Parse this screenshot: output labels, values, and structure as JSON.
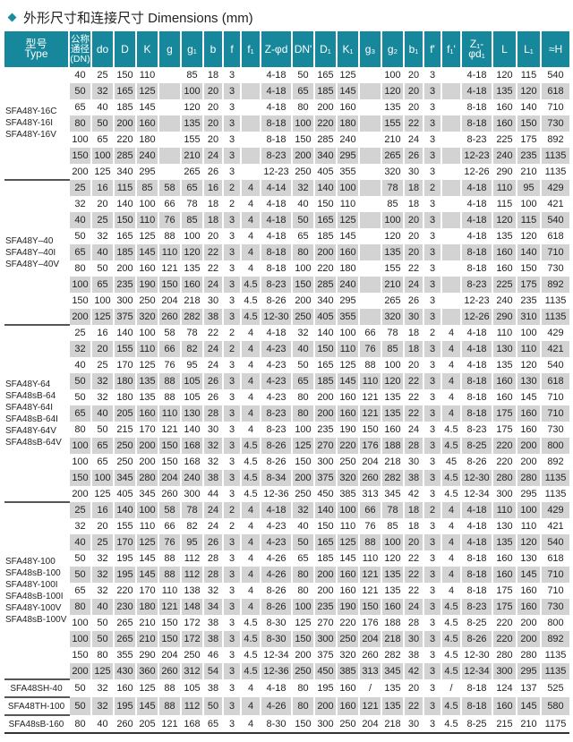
{
  "title": "外形尺寸和连接尺寸 Dimensions (mm)",
  "accent_color": "#17879c",
  "row_gray_color": "#d3d3d3",
  "headers": [
    "型号\nType",
    "公称\n通径\n(DN)",
    "do",
    "D",
    "K",
    "g",
    "g₁",
    "b",
    "f",
    "f₁",
    "Z-φd",
    "DN'",
    "D₁",
    "K₁",
    "g₃",
    "g₂",
    "b₁",
    "f'",
    "f₁'",
    "Z₁-φd₁",
    "L",
    "L₁",
    "≈H"
  ],
  "groups": [
    {
      "types": [
        "SFA48Y-16C",
        "SFA48Y-16I",
        "SFA48Y-16V"
      ],
      "rows": [
        [
          "40",
          "25",
          "150",
          "110",
          "",
          "85",
          "18",
          "3",
          "",
          "4-18",
          "50",
          "165",
          "125",
          "",
          "100",
          "20",
          "3",
          "",
          "4-18",
          "120",
          "115",
          "540"
        ],
        [
          "50",
          "32",
          "165",
          "125",
          "",
          "100",
          "20",
          "3",
          "",
          "4-18",
          "65",
          "185",
          "145",
          "",
          "120",
          "20",
          "3",
          "",
          "4-18",
          "135",
          "120",
          "618"
        ],
        [
          "65",
          "40",
          "185",
          "145",
          "",
          "120",
          "20",
          "3",
          "",
          "4-18",
          "80",
          "200",
          "160",
          "",
          "135",
          "20",
          "3",
          "",
          "8-18",
          "160",
          "140",
          "710"
        ],
        [
          "80",
          "50",
          "200",
          "160",
          "",
          "135",
          "20",
          "3",
          "",
          "8-18",
          "100",
          "220",
          "180",
          "",
          "155",
          "22",
          "3",
          "",
          "8-18",
          "160",
          "150",
          "730"
        ],
        [
          "100",
          "65",
          "220",
          "180",
          "",
          "155",
          "20",
          "3",
          "",
          "8-18",
          "150",
          "285",
          "240",
          "",
          "210",
          "24",
          "3",
          "",
          "8-23",
          "225",
          "175",
          "892"
        ],
        [
          "150",
          "100",
          "285",
          "240",
          "",
          "210",
          "24",
          "3",
          "",
          "8-23",
          "200",
          "340",
          "295",
          "",
          "265",
          "26",
          "3",
          "",
          "12-23",
          "240",
          "235",
          "1135"
        ],
        [
          "200",
          "125",
          "340",
          "295",
          "",
          "265",
          "26",
          "3",
          "",
          "12-23",
          "250",
          "405",
          "355",
          "",
          "320",
          "30",
          "3",
          "",
          "12-26",
          "290",
          "210",
          "1135"
        ]
      ]
    },
    {
      "types": [
        "SFA48Y–40",
        "SFA48Y–40I",
        "SFA48Y–40V"
      ],
      "rows": [
        [
          "25",
          "16",
          "115",
          "85",
          "58",
          "65",
          "16",
          "2",
          "4",
          "4-14",
          "32",
          "140",
          "100",
          "",
          "78",
          "18",
          "2",
          "",
          "4-18",
          "110",
          "95",
          "429"
        ],
        [
          "32",
          "20",
          "140",
          "100",
          "66",
          "78",
          "18",
          "2",
          "4",
          "4-18",
          "40",
          "150",
          "110",
          "",
          "85",
          "18",
          "3",
          "",
          "4-18",
          "115",
          "100",
          "421"
        ],
        [
          "40",
          "25",
          "150",
          "110",
          "76",
          "85",
          "18",
          "3",
          "4",
          "4-18",
          "50",
          "165",
          "125",
          "",
          "100",
          "20",
          "3",
          "",
          "4-18",
          "120",
          "115",
          "540"
        ],
        [
          "50",
          "32",
          "165",
          "125",
          "88",
          "100",
          "20",
          "3",
          "4",
          "4-18",
          "65",
          "185",
          "145",
          "",
          "120",
          "20",
          "3",
          "",
          "4-18",
          "135",
          "120",
          "618"
        ],
        [
          "65",
          "40",
          "185",
          "145",
          "110",
          "120",
          "22",
          "3",
          "4",
          "8-18",
          "80",
          "200",
          "160",
          "",
          "135",
          "20",
          "3",
          "",
          "8-18",
          "160",
          "140",
          "710"
        ],
        [
          "80",
          "50",
          "200",
          "160",
          "121",
          "135",
          "22",
          "3",
          "4",
          "8-18",
          "100",
          "220",
          "180",
          "",
          "155",
          "22",
          "3",
          "",
          "8-18",
          "160",
          "150",
          "730"
        ],
        [
          "100",
          "65",
          "235",
          "190",
          "150",
          "160",
          "24",
          "3",
          "4.5",
          "8-23",
          "150",
          "285",
          "240",
          "",
          "210",
          "24",
          "3",
          "",
          "8-23",
          "225",
          "175",
          "892"
        ],
        [
          "150",
          "100",
          "300",
          "250",
          "204",
          "218",
          "30",
          "3",
          "4.5",
          "8-26",
          "200",
          "340",
          "295",
          "",
          "265",
          "26",
          "3",
          "",
          "12-23",
          "240",
          "235",
          "1135"
        ],
        [
          "200",
          "125",
          "375",
          "320",
          "260",
          "282",
          "38",
          "3",
          "4.5",
          "12-30",
          "250",
          "405",
          "355",
          "",
          "320",
          "30",
          "3",
          "",
          "12-26",
          "290",
          "310",
          "1135"
        ]
      ]
    },
    {
      "types": [
        "SFA48Y-64",
        "SFA48sB-64",
        "SFA48Y-64I",
        "SFA48sB-64I",
        "SFA48Y-64V",
        "SFA48sB-64V"
      ],
      "rows": [
        [
          "25",
          "16",
          "140",
          "100",
          "58",
          "78",
          "22",
          "2",
          "4",
          "4-18",
          "32",
          "140",
          "100",
          "66",
          "78",
          "18",
          "2",
          "4",
          "4-18",
          "110",
          "100",
          "429"
        ],
        [
          "32",
          "20",
          "155",
          "110",
          "66",
          "82",
          "24",
          "2",
          "4",
          "4-23",
          "40",
          "150",
          "110",
          "76",
          "85",
          "18",
          "3",
          "4",
          "4-18",
          "130",
          "110",
          "421"
        ],
        [
          "40",
          "25",
          "170",
          "125",
          "76",
          "95",
          "24",
          "3",
          "4",
          "4-23",
          "50",
          "165",
          "125",
          "88",
          "100",
          "20",
          "3",
          "4",
          "4-18",
          "135",
          "120",
          "540"
        ],
        [
          "50",
          "32",
          "180",
          "135",
          "88",
          "105",
          "26",
          "3",
          "4",
          "4-23",
          "65",
          "185",
          "145",
          "110",
          "120",
          "22",
          "3",
          "4",
          "8-18",
          "160",
          "130",
          "618"
        ],
        [
          "50",
          "32",
          "180",
          "135",
          "88",
          "105",
          "26",
          "3",
          "4",
          "4-23",
          "80",
          "200",
          "160",
          "121",
          "135",
          "22",
          "3",
          "4",
          "8-18",
          "160",
          "145",
          "710"
        ],
        [
          "65",
          "40",
          "205",
          "160",
          "110",
          "130",
          "28",
          "3",
          "4",
          "8-23",
          "80",
          "200",
          "160",
          "121",
          "135",
          "22",
          "3",
          "4",
          "8-18",
          "175",
          "160",
          "710"
        ],
        [
          "80",
          "50",
          "215",
          "170",
          "121",
          "140",
          "30",
          "3",
          "4",
          "8-23",
          "100",
          "235",
          "190",
          "150",
          "160",
          "24",
          "3",
          "4.5",
          "8-23",
          "175",
          "160",
          "730"
        ],
        [
          "100",
          "65",
          "250",
          "200",
          "150",
          "168",
          "32",
          "3",
          "4.5",
          "8-26",
          "125",
          "270",
          "220",
          "176",
          "188",
          "28",
          "3",
          "4.5",
          "8-25",
          "220",
          "200",
          "800"
        ],
        [
          "100",
          "65",
          "250",
          "200",
          "150",
          "168",
          "32",
          "3",
          "4.5",
          "8-26",
          "150",
          "300",
          "250",
          "204",
          "218",
          "30",
          "3",
          "45",
          "8-26",
          "220",
          "200",
          "892"
        ],
        [
          "150",
          "100",
          "345",
          "280",
          "204",
          "240",
          "38",
          "3",
          "4.5",
          "8-34",
          "200",
          "375",
          "320",
          "260",
          "282",
          "38",
          "3",
          "4.5",
          "12-30",
          "280",
          "280",
          "1135"
        ],
        [
          "200",
          "125",
          "405",
          "345",
          "260",
          "300",
          "44",
          "3",
          "4.5",
          "12-36",
          "250",
          "450",
          "385",
          "313",
          "345",
          "42",
          "3",
          "4.5",
          "12-34",
          "300",
          "295",
          "1135"
        ]
      ]
    },
    {
      "types": [
        "SFA48Y-100",
        "SFA48sB-100",
        "SFA48Y-100I",
        "SFA48sB-100I",
        "SFA48Y-100V",
        "SFA48sB-100V"
      ],
      "rows": [
        [
          "25",
          "16",
          "140",
          "100",
          "58",
          "78",
          "24",
          "2",
          "4",
          "4-18",
          "32",
          "140",
          "100",
          "66",
          "78",
          "18",
          "2",
          "4",
          "4-18",
          "110",
          "100",
          "429"
        ],
        [
          "32",
          "20",
          "155",
          "110",
          "66",
          "82",
          "24",
          "2",
          "4",
          "4-23",
          "40",
          "150",
          "110",
          "76",
          "85",
          "18",
          "3",
          "4",
          "4-18",
          "130",
          "110",
          "421"
        ],
        [
          "40",
          "25",
          "170",
          "125",
          "76",
          "95",
          "26",
          "3",
          "4",
          "4-23",
          "50",
          "165",
          "125",
          "88",
          "100",
          "20",
          "3",
          "4",
          "4-18",
          "135",
          "120",
          "540"
        ],
        [
          "50",
          "32",
          "195",
          "145",
          "88",
          "112",
          "28",
          "3",
          "4",
          "4-26",
          "65",
          "185",
          "145",
          "110",
          "120",
          "22",
          "3",
          "4",
          "8-18",
          "160",
          "130",
          "618"
        ],
        [
          "50",
          "32",
          "195",
          "145",
          "88",
          "112",
          "28",
          "3",
          "4",
          "4-26",
          "80",
          "200",
          "160",
          "121",
          "135",
          "22",
          "3",
          "4",
          "8-18",
          "160",
          "145",
          "710"
        ],
        [
          "65",
          "32",
          "220",
          "170",
          "110",
          "138",
          "32",
          "3",
          "4",
          "8-26",
          "80",
          "200",
          "160",
          "121",
          "135",
          "22",
          "3",
          "4",
          "8-18",
          "175",
          "160",
          "710"
        ],
        [
          "80",
          "40",
          "230",
          "180",
          "121",
          "148",
          "34",
          "3",
          "4",
          "8-26",
          "100",
          "235",
          "190",
          "150",
          "160",
          "24",
          "3",
          "4.5",
          "8-23",
          "175",
          "160",
          "730"
        ],
        [
          "100",
          "50",
          "265",
          "210",
          "150",
          "172",
          "38",
          "3",
          "4.5",
          "8-30",
          "125",
          "270",
          "220",
          "176",
          "188",
          "28",
          "3",
          "4.5",
          "8-25",
          "220",
          "200",
          "800"
        ],
        [
          "100",
          "50",
          "265",
          "210",
          "150",
          "172",
          "38",
          "3",
          "4.5",
          "8-30",
          "150",
          "300",
          "250",
          "204",
          "218",
          "30",
          "3",
          "4.5",
          "8-26",
          "220",
          "200",
          "892"
        ],
        [
          "150",
          "80",
          "355",
          "290",
          "204",
          "250",
          "46",
          "3",
          "4.5",
          "12-34",
          "200",
          "375",
          "320",
          "260",
          "282",
          "38",
          "3",
          "4.5",
          "12-30",
          "280",
          "280",
          "1135"
        ],
        [
          "200",
          "125",
          "430",
          "360",
          "260",
          "312",
          "54",
          "3",
          "4.5",
          "12-36",
          "250",
          "450",
          "385",
          "313",
          "345",
          "42",
          "3",
          "4.5",
          "12-34",
          "300",
          "295",
          "1135"
        ]
      ]
    },
    {
      "types": [
        "SFA48SH-40"
      ],
      "rows": [
        [
          "50",
          "32",
          "160",
          "125",
          "88",
          "105",
          "38",
          "3",
          "4",
          "4-18",
          "80",
          "195",
          "160",
          "/",
          "135",
          "20",
          "3",
          "/",
          "8-18",
          "124",
          "137",
          "525"
        ]
      ]
    },
    {
      "types": [
        "SFA48TH-100"
      ],
      "rows": [
        [
          "50",
          "32",
          "195",
          "145",
          "88",
          "112",
          "50",
          "3",
          "4",
          "4-26",
          "80",
          "200",
          "160",
          "121",
          "135",
          "22",
          "3",
          "4.5",
          "8-18",
          "160",
          "145",
          "580"
        ]
      ]
    },
    {
      "types": [
        "SFA48sB-160"
      ],
      "rows": [
        [
          "80",
          "40",
          "260",
          "205",
          "121",
          "168",
          "65",
          "3",
          "4",
          "8-30",
          "150",
          "300",
          "250",
          "204",
          "218",
          "30",
          "3",
          "4.5",
          "8-25",
          "215",
          "210",
          "1175"
        ]
      ]
    }
  ]
}
